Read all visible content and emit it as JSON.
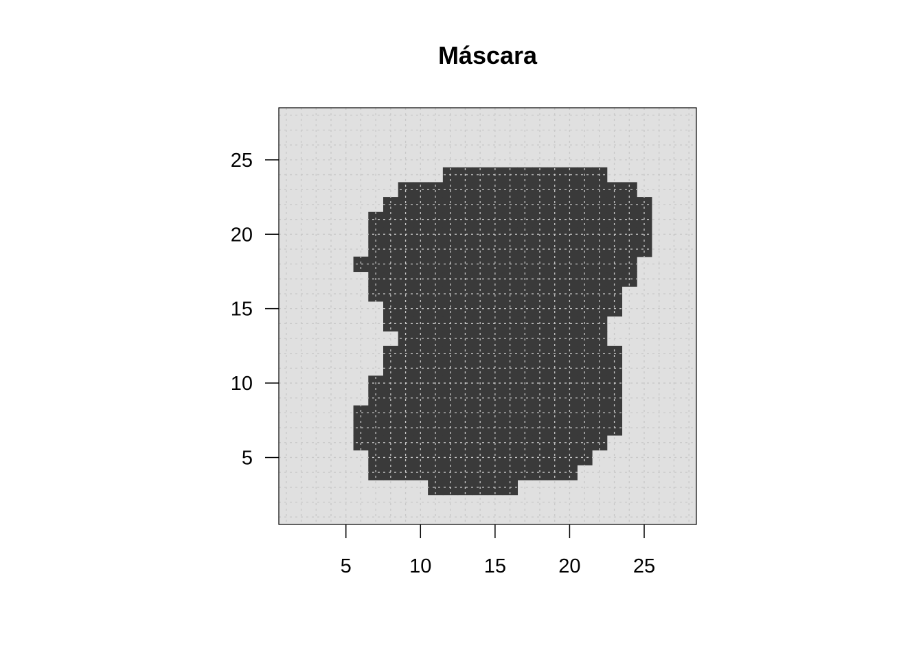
{
  "chart_data": {
    "type": "heatmap",
    "title": "Máscara",
    "xlabel": "",
    "ylabel": "",
    "xlim": [
      0.5,
      28.5
    ],
    "ylim": [
      0.5,
      28.5
    ],
    "x_ticks": [
      5,
      10,
      15,
      20,
      25
    ],
    "y_ticks": [
      5,
      10,
      15,
      20,
      25
    ],
    "grid": true,
    "grid_style": "dotted",
    "legend": "none",
    "colors": {
      "background": "#e0e0e0",
      "mask": "#3a3a3a",
      "grid": "#c8c8c8",
      "grid_on_mask": "#8a8a8a",
      "axis": "#000000"
    },
    "mask_rows": [
      {
        "y": 3,
        "x_ranges": [
          [
            11,
            16
          ]
        ]
      },
      {
        "y": 4,
        "x_ranges": [
          [
            7,
            20
          ]
        ]
      },
      {
        "y": 5,
        "x_ranges": [
          [
            7,
            21
          ]
        ]
      },
      {
        "y": 6,
        "x_ranges": [
          [
            6,
            22
          ]
        ]
      },
      {
        "y": 7,
        "x_ranges": [
          [
            6,
            23
          ]
        ]
      },
      {
        "y": 8,
        "x_ranges": [
          [
            6,
            23
          ]
        ]
      },
      {
        "y": 9,
        "x_ranges": [
          [
            7,
            23
          ]
        ]
      },
      {
        "y": 10,
        "x_ranges": [
          [
            7,
            23
          ]
        ]
      },
      {
        "y": 11,
        "x_ranges": [
          [
            8,
            23
          ]
        ]
      },
      {
        "y": 12,
        "x_ranges": [
          [
            8,
            23
          ]
        ]
      },
      {
        "y": 13,
        "x_ranges": [
          [
            9,
            22
          ]
        ]
      },
      {
        "y": 14,
        "x_ranges": [
          [
            8,
            22
          ]
        ]
      },
      {
        "y": 15,
        "x_ranges": [
          [
            8,
            23
          ]
        ]
      },
      {
        "y": 16,
        "x_ranges": [
          [
            7,
            23
          ]
        ]
      },
      {
        "y": 17,
        "x_ranges": [
          [
            7,
            24
          ]
        ]
      },
      {
        "y": 18,
        "x_ranges": [
          [
            6,
            24
          ]
        ]
      },
      {
        "y": 19,
        "x_ranges": [
          [
            7,
            25
          ]
        ]
      },
      {
        "y": 20,
        "x_ranges": [
          [
            7,
            25
          ]
        ]
      },
      {
        "y": 21,
        "x_ranges": [
          [
            7,
            25
          ]
        ]
      },
      {
        "y": 22,
        "x_ranges": [
          [
            8,
            25
          ]
        ]
      },
      {
        "y": 23,
        "x_ranges": [
          [
            9,
            24
          ]
        ]
      },
      {
        "y": 24,
        "x_ranges": [
          [
            12,
            22
          ]
        ]
      }
    ]
  }
}
